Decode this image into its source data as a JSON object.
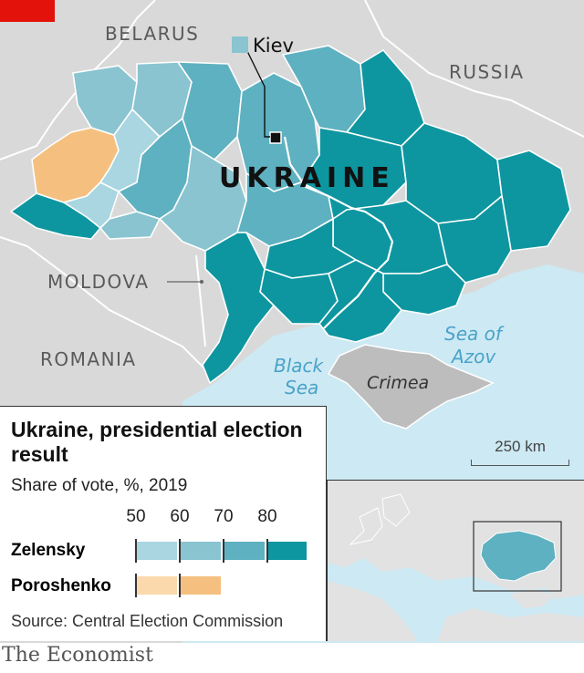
{
  "map": {
    "country_label": "UKRAINE",
    "capital_label": "Kiev",
    "neighbours": [
      "BELARUS",
      "RUSSIA",
      "MOLDOVA",
      "ROMANIA"
    ],
    "seas": {
      "black_sea": [
        "Black",
        "Sea"
      ],
      "azov": [
        "Sea of",
        "Azov"
      ]
    },
    "crimea_label": "Crimea",
    "scale_label": "250 km",
    "colors": {
      "zelensky_50": "#a9d6e0",
      "zelensky_60": "#8ac4d1",
      "zelensky_70": "#5eb1c0",
      "zelensky_80": "#0d96a0",
      "poroshenko_50": "#fbd9ad",
      "poroshenko_60": "#f5c07f",
      "land": "#d9d9d9",
      "sea": "#cde9f3",
      "border": "#ffffff"
    }
  },
  "legend": {
    "title": "Ukraine, presidential election result",
    "subtitle": "Share of vote, %, 2019",
    "ticks": [
      "50",
      "60",
      "70",
      "80"
    ],
    "zelensky_label": "Zelensky",
    "poroshenko_label": "Poroshenko",
    "zelensky_color": "#1a7f8f",
    "poroshenko_color": "#e8952d"
  },
  "source": "Source: Central Election Commission",
  "brand": "The Economist"
}
